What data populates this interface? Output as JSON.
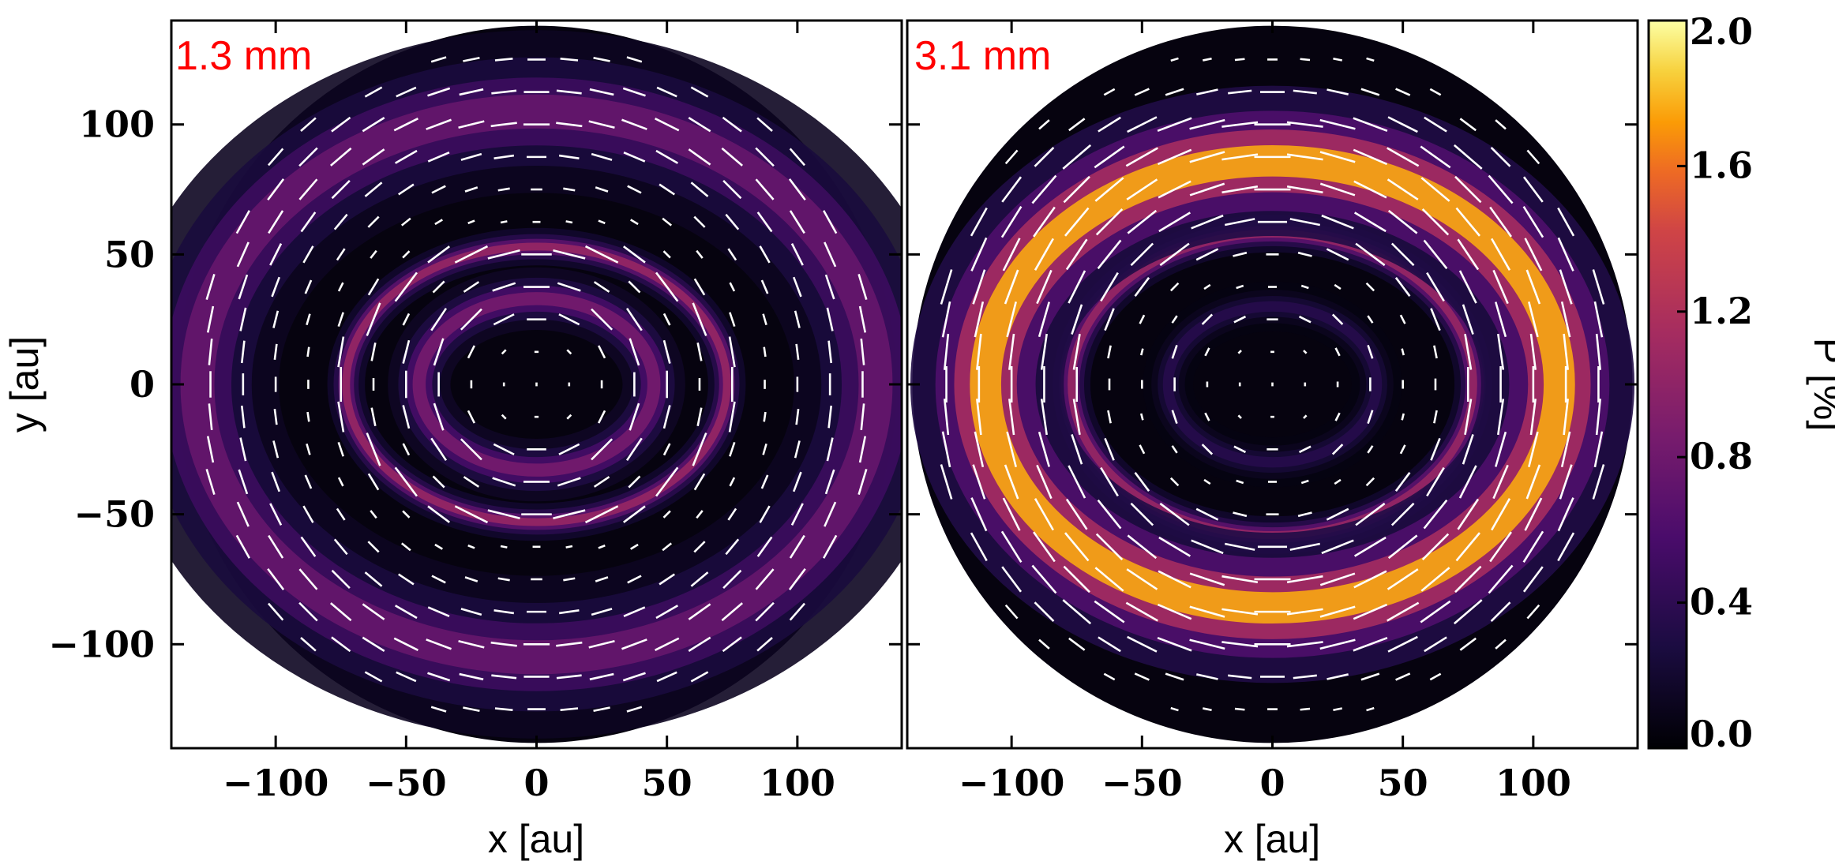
{
  "chart_data": {
    "type": "heatmap",
    "colormap": "inferno",
    "colors": {
      "label": "#ff0000",
      "vector": "#ffffff",
      "frame": "#000000"
    },
    "xlabel": "x [au]",
    "ylabel": "y [au]",
    "xlim": [
      -140,
      140
    ],
    "ylim": [
      -140,
      140
    ],
    "x_ticks": [
      -100,
      -50,
      0,
      50,
      100
    ],
    "x_tick_labels": [
      "−100",
      "−50",
      "0",
      "50",
      "100"
    ],
    "y_ticks": [
      -100,
      -50,
      0,
      50,
      100
    ],
    "y_tick_labels": [
      "−100",
      "−50",
      "0",
      "50",
      "100"
    ],
    "colorbar": {
      "label": "P [%]",
      "range": [
        0.0,
        2.0
      ],
      "ticks": [
        0.0,
        0.4,
        0.8,
        1.2,
        1.6,
        2.0
      ],
      "tick_labels": [
        "0.0",
        "0.4",
        "0.8",
        "1.2",
        "1.6",
        "2.0"
      ]
    },
    "panels": [
      {
        "label": "1.3 mm",
        "disk_radius_au": 138,
        "polarization_rings": [
          {
            "name": "inner ring",
            "rx_au": 45,
            "ry_au": 33,
            "width_au": 5,
            "peak_percent": 0.85
          },
          {
            "name": "middle ring",
            "rx_au": 73,
            "ry_au": 53,
            "width_au": 3,
            "peak_percent": 1.05
          },
          {
            "name": "outer ring",
            "rx_au": 130,
            "ry_au": 105,
            "width_au": 13,
            "peak_percent": 0.75
          }
        ]
      },
      {
        "label": "3.1 mm",
        "disk_radius_au": 138,
        "polarization_rings": [
          {
            "name": "inner ring",
            "rx_au": 40,
            "ry_au": 30,
            "width_au": 4,
            "peak_percent": 0.35
          },
          {
            "name": "middle ring",
            "rx_au": 77,
            "ry_au": 58,
            "width_au": 3,
            "peak_percent": 1.05
          },
          {
            "name": "outer ring",
            "rx_au": 110,
            "ry_au": 86,
            "width_au": 12,
            "peak_percent": 1.75
          }
        ]
      }
    ]
  }
}
